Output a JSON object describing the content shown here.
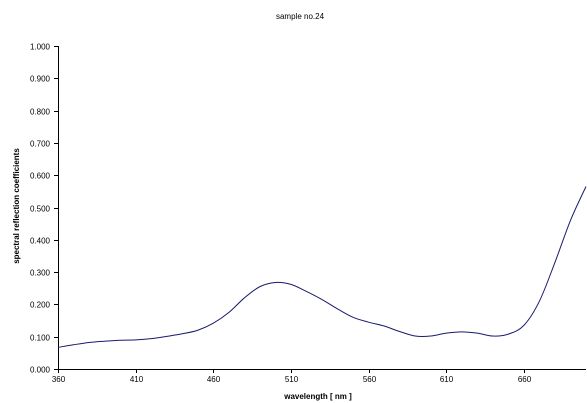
{
  "chart_data": {
    "type": "line",
    "title": "sample no.24",
    "xlabel": "wavelength [ nm ]",
    "ylabel": "spectral reflection coefficients",
    "xlim": [
      360,
      700
    ],
    "ylim": [
      0,
      1
    ],
    "x_ticks": [
      "360",
      "410",
      "460",
      "510",
      "560",
      "610",
      "660"
    ],
    "x_tick_values": [
      360,
      410,
      460,
      510,
      560,
      610,
      660
    ],
    "y_ticks": [
      "0.000",
      "0.100",
      "0.200",
      "0.300",
      "0.400",
      "0.500",
      "0.600",
      "0.700",
      "0.800",
      "0.900",
      "1.000"
    ],
    "y_tick_values": [
      0,
      0.1,
      0.2,
      0.3,
      0.4,
      0.5,
      0.6,
      0.7,
      0.8,
      0.9,
      1.0
    ],
    "grid": false,
    "legend": "none",
    "line_color": "#1a1a6e",
    "series": [
      {
        "x": [
          360,
          370,
          380,
          390,
          400,
          410,
          420,
          430,
          440,
          450,
          460,
          470,
          480,
          490,
          500,
          510,
          520,
          530,
          540,
          550,
          560,
          570,
          580,
          590,
          600,
          610,
          620,
          630,
          640,
          650,
          660,
          670,
          680,
          690,
          700
        ],
        "values": [
          0.067,
          0.075,
          0.082,
          0.086,
          0.089,
          0.09,
          0.094,
          0.101,
          0.109,
          0.12,
          0.142,
          0.175,
          0.22,
          0.255,
          0.268,
          0.262,
          0.24,
          0.215,
          0.186,
          0.16,
          0.145,
          0.133,
          0.116,
          0.102,
          0.102,
          0.111,
          0.115,
          0.111,
          0.102,
          0.108,
          0.135,
          0.21,
          0.33,
          0.46,
          0.565
        ]
      }
    ]
  }
}
